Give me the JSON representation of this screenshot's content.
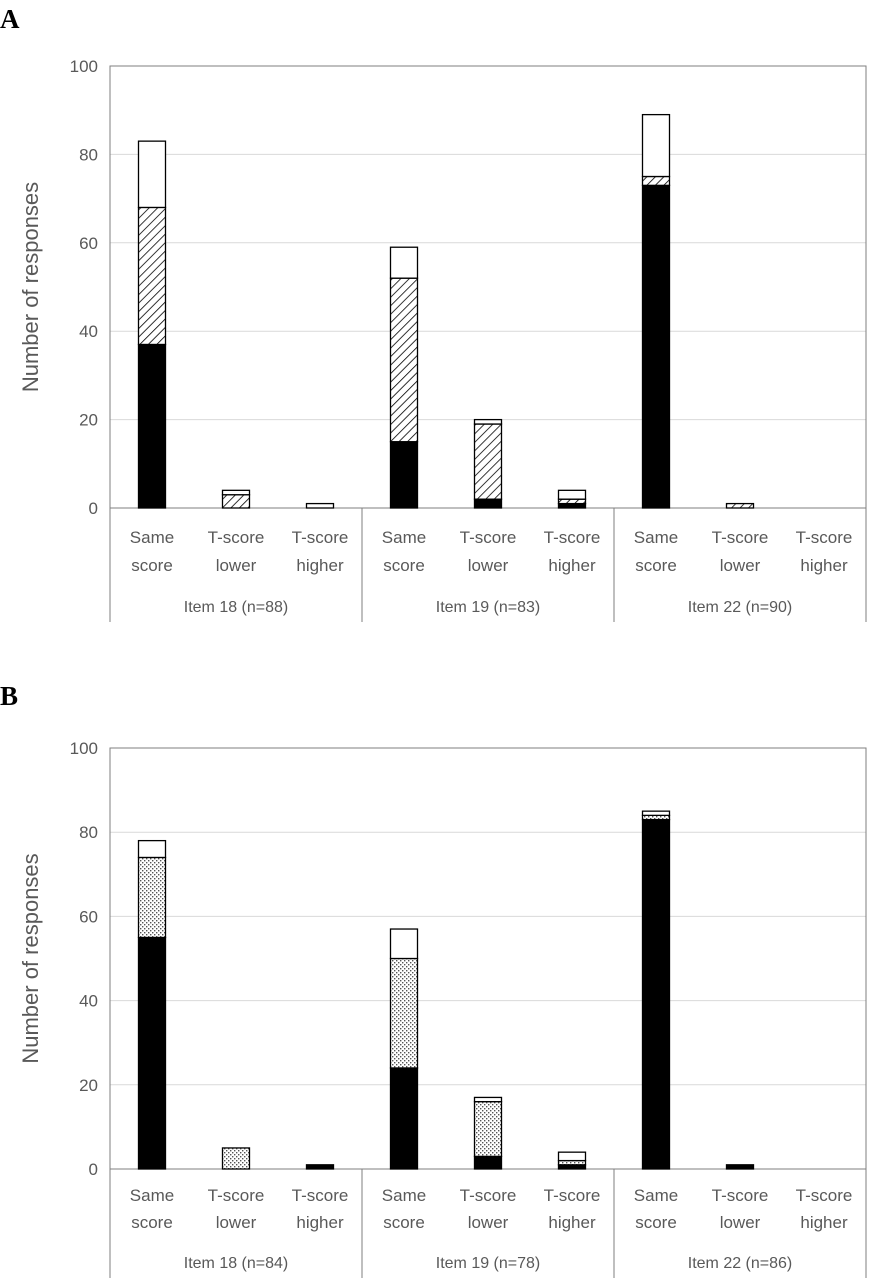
{
  "chart_data": [
    {
      "type": "bar",
      "stacked": true,
      "panel": "A",
      "ylabel": "Number of responses",
      "ylim": [
        0,
        100
      ],
      "yticks": [
        "0",
        "20",
        "40",
        "60",
        "80",
        "100"
      ],
      "grid": true,
      "categories": [
        [
          "Same",
          "score"
        ],
        [
          "T-score",
          "lower"
        ],
        [
          "T-score",
          "higher"
        ],
        [
          "Same",
          "score"
        ],
        [
          "T-score",
          "lower"
        ],
        [
          "T-score",
          "higher"
        ],
        [
          "Same",
          "score"
        ],
        [
          "T-score",
          "lower"
        ],
        [
          "T-score",
          "higher"
        ]
      ],
      "groups": [
        "Item 18 (n=88)",
        "Item 19 (n=83)",
        "Item 22 (n=90)"
      ],
      "series": [
        {
          "fill": "#000000",
          "values": [
            37,
            0,
            0,
            15,
            2,
            1,
            73,
            0,
            0
          ]
        },
        {
          "fill": "hatch",
          "values": [
            31,
            3,
            0,
            37,
            17,
            1,
            2,
            1,
            0
          ]
        },
        {
          "fill": "#ffffff",
          "values": [
            15,
            1,
            1,
            7,
            1,
            2,
            14,
            0,
            0
          ]
        }
      ]
    },
    {
      "type": "bar",
      "stacked": true,
      "panel": "B",
      "ylabel": "Number of responses",
      "ylim": [
        0,
        100
      ],
      "yticks": [
        "0",
        "20",
        "40",
        "60",
        "80",
        "100"
      ],
      "grid": true,
      "categories": [
        [
          "Same",
          "score"
        ],
        [
          "T-score",
          "lower"
        ],
        [
          "T-score",
          "higher"
        ],
        [
          "Same",
          "score"
        ],
        [
          "T-score",
          "lower"
        ],
        [
          "T-score",
          "higher"
        ],
        [
          "Same",
          "score"
        ],
        [
          "T-score",
          "lower"
        ],
        [
          "T-score",
          "higher"
        ]
      ],
      "groups": [
        "Item 18 (n=84)",
        "Item 19 (n=78)",
        "Item 22 (n=86)"
      ],
      "series": [
        {
          "fill": "#000000",
          "values": [
            55,
            0,
            1,
            24,
            3,
            1,
            83,
            1,
            0
          ]
        },
        {
          "fill": "dots",
          "values": [
            19,
            5,
            0,
            26,
            13,
            1,
            1,
            0,
            0
          ]
        },
        {
          "fill": "#ffffff",
          "values": [
            4,
            0,
            0,
            7,
            1,
            2,
            1,
            0,
            0
          ]
        }
      ]
    }
  ]
}
